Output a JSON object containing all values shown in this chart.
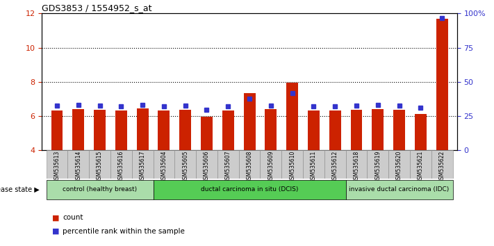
{
  "title": "GDS3853 / 1554952_s_at",
  "samples": [
    "GSM535613",
    "GSM535614",
    "GSM535615",
    "GSM535616",
    "GSM535617",
    "GSM535604",
    "GSM535605",
    "GSM535606",
    "GSM535607",
    "GSM535608",
    "GSM535609",
    "GSM535610",
    "GSM535611",
    "GSM535612",
    "GSM535618",
    "GSM535619",
    "GSM535620",
    "GSM535621",
    "GSM535622"
  ],
  "red_values": [
    6.3,
    6.4,
    6.35,
    6.3,
    6.45,
    6.3,
    6.35,
    5.95,
    6.3,
    7.35,
    6.4,
    7.95,
    6.3,
    6.3,
    6.35,
    6.4,
    6.35,
    6.1,
    11.7
  ],
  "blue_values": [
    6.6,
    6.65,
    6.6,
    6.55,
    6.65,
    6.55,
    6.6,
    6.35,
    6.55,
    7.0,
    6.6,
    7.35,
    6.55,
    6.55,
    6.6,
    6.65,
    6.6,
    6.5,
    11.75
  ],
  "y_left_min": 4,
  "y_left_max": 12,
  "y_left_ticks": [
    4,
    6,
    8,
    10,
    12
  ],
  "y_right_min": 0,
  "y_right_max": 100,
  "y_right_ticks": [
    0,
    25,
    50,
    75,
    100
  ],
  "y_right_tick_labels": [
    "0",
    "25",
    "50",
    "75",
    "100%"
  ],
  "grid_values": [
    6,
    8,
    10
  ],
  "bar_bottom": 4,
  "bar_color": "#cc2200",
  "blue_color": "#3333cc",
  "groups": [
    {
      "label": "control (healthy breast)",
      "start": 0,
      "end": 5,
      "color": "#aaddaa"
    },
    {
      "label": "ductal carcinoma in situ (DCIS)",
      "start": 5,
      "end": 14,
      "color": "#55cc55"
    },
    {
      "label": "invasive ductal carcinoma (IDC)",
      "start": 14,
      "end": 19,
      "color": "#aaddaa"
    }
  ],
  "disease_state_label": "disease state",
  "legend_count_label": "count",
  "legend_pct_label": "percentile rank within the sample",
  "tick_label_color_left": "#cc2200",
  "tick_label_color_right": "#3333cc",
  "bar_width": 0.55,
  "xlim_left": -0.7,
  "xlim_right": 18.7
}
